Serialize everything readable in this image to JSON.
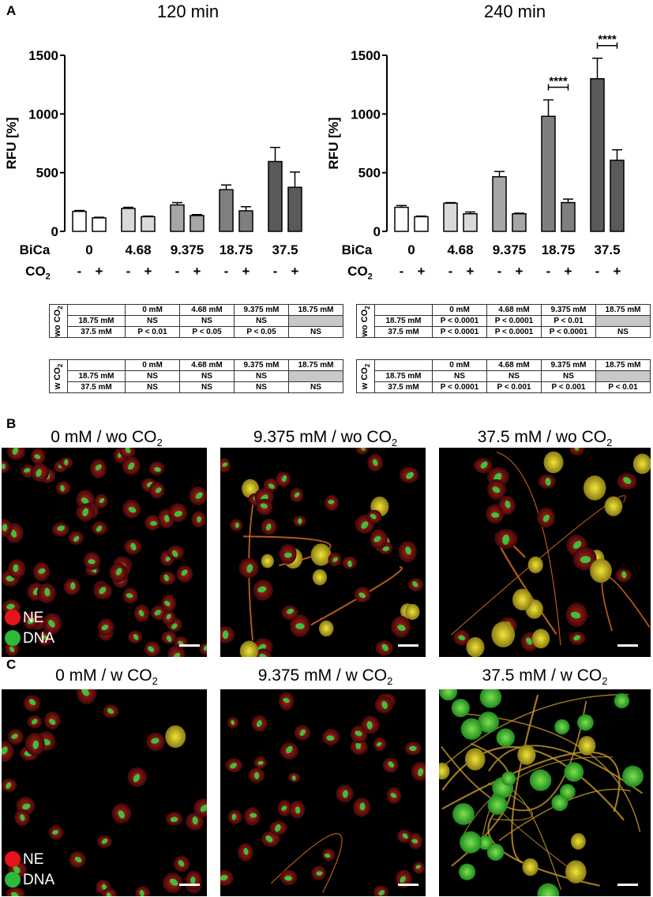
{
  "panels": {
    "a": "A",
    "b": "B",
    "c": "C"
  },
  "chart_data": [
    {
      "type": "bar",
      "title": "120 min",
      "ylabel": "RFU [%]",
      "ylim": [
        0,
        1500
      ],
      "yticks": [
        0,
        500,
        1000,
        1500
      ],
      "categories": [
        "0",
        "4.68",
        "9.375",
        "18.75",
        "37.5"
      ],
      "category_axis_label": "BiCa",
      "co2_label": "CO2",
      "co2_signs": [
        "-",
        "+"
      ],
      "series": [
        {
          "co2": "-",
          "values": [
            170,
            195,
            225,
            355,
            595
          ],
          "errors": [
            8,
            10,
            20,
            40,
            120
          ]
        },
        {
          "co2": "+",
          "values": [
            115,
            125,
            135,
            175,
            375
          ],
          "errors": [
            5,
            5,
            8,
            35,
            130
          ]
        }
      ],
      "colors": [
        "#ffffff",
        "#d9d9d9",
        "#a6a6a6",
        "#7f7f7f",
        "#5a5a5a"
      ],
      "significance": []
    },
    {
      "type": "bar",
      "title": "240 min",
      "ylabel": "RFU [%]",
      "ylim": [
        0,
        1500
      ],
      "yticks": [
        0,
        500,
        1000,
        1500
      ],
      "categories": [
        "0",
        "4.68",
        "9.375",
        "18.75",
        "37.5"
      ],
      "category_axis_label": "BiCa",
      "co2_label": "CO2",
      "co2_signs": [
        "-",
        "+"
      ],
      "series": [
        {
          "co2": "-",
          "values": [
            205,
            240,
            465,
            980,
            1300
          ],
          "errors": [
            15,
            5,
            45,
            140,
            175
          ]
        },
        {
          "co2": "+",
          "values": [
            125,
            150,
            150,
            245,
            605
          ],
          "errors": [
            5,
            15,
            5,
            30,
            90
          ]
        }
      ],
      "colors": [
        "#ffffff",
        "#d9d9d9",
        "#a6a6a6",
        "#7f7f7f",
        "#5a5a5a"
      ],
      "significance": [
        {
          "category": 3,
          "label": "****"
        },
        {
          "category": 4,
          "label": "****"
        }
      ]
    }
  ],
  "tables": [
    {
      "side": "wo CO2",
      "headers": [
        "0 mM",
        "4.68 mM",
        "9.375 mM",
        "18.75 mM"
      ],
      "rows": [
        {
          "label": "18.75 mM",
          "cells": [
            "NS",
            "NS",
            "NS",
            ""
          ]
        },
        {
          "label": "37.5 mM",
          "cells": [
            "P < 0.01",
            "P < 0.05",
            "P < 0.05",
            "NS"
          ]
        }
      ]
    },
    {
      "side": "w CO2",
      "headers": [
        "0 mM",
        "4.68 mM",
        "9.375 mM",
        "18.75 mM"
      ],
      "rows": [
        {
          "label": "18.75 mM",
          "cells": [
            "NS",
            "NS",
            "NS",
            ""
          ]
        },
        {
          "label": "37.5 mM",
          "cells": [
            "NS",
            "NS",
            "NS",
            "NS"
          ]
        }
      ]
    },
    {
      "side": "wo CO2",
      "headers": [
        "0 mM",
        "4.68 mM",
        "9.375 mM",
        "18.75 mM"
      ],
      "rows": [
        {
          "label": "18.75 mM",
          "cells": [
            "P < 0.0001",
            "P < 0.0001",
            "P < 0.01",
            ""
          ]
        },
        {
          "label": "37.5 mM",
          "cells": [
            "P < 0.0001",
            "P < 0.0001",
            "P < 0.0001",
            "NS"
          ]
        }
      ]
    },
    {
      "side": "w CO2",
      "headers": [
        "0 mM",
        "4.68 mM",
        "9.375 mM",
        "18.75 mM"
      ],
      "rows": [
        {
          "label": "18.75 mM",
          "cells": [
            "NS",
            "NS",
            "NS",
            ""
          ]
        },
        {
          "label": "37.5 mM",
          "cells": [
            "P < 0.0001",
            "P < 0.001",
            "P < 0.001",
            "P < 0.01"
          ]
        }
      ]
    }
  ],
  "images": {
    "b": [
      "0 mM / wo CO2",
      "9.375 mM / wo CO2",
      "37.5 mM / wo CO2"
    ],
    "c": [
      "0 mM / w CO2",
      "9.375 mM / w CO2",
      "37.5 mM / w CO2"
    ]
  },
  "legend": [
    {
      "label": "NE",
      "color": "#e8141b"
    },
    {
      "label": "DNA",
      "color": "#2fb83a"
    }
  ]
}
